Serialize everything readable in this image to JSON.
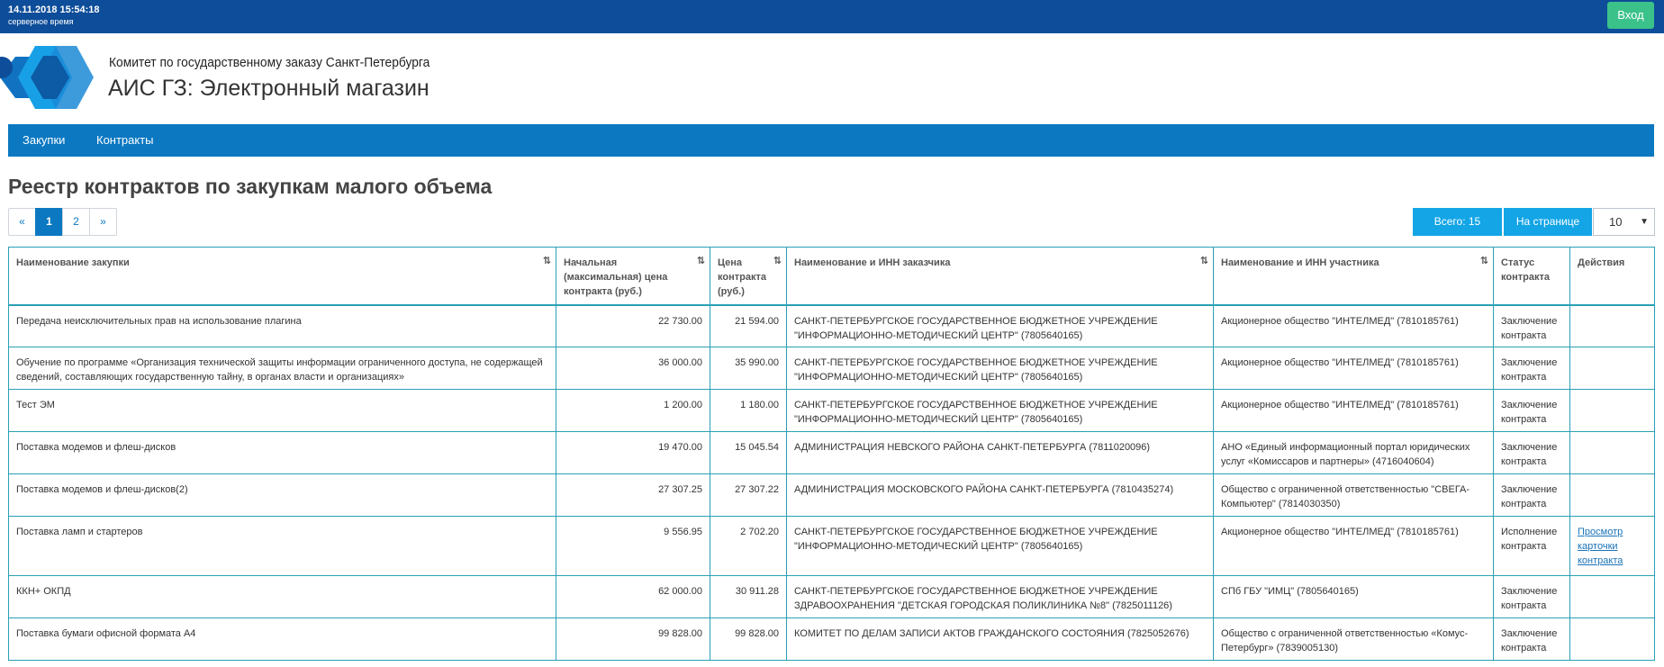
{
  "topbar": {
    "datetime": "14.11.2018 15:54:18",
    "server_time_label": "серверное время",
    "login_label": "Вход"
  },
  "header": {
    "org_name": "Комитет по государственному заказу Санкт-Петербурга",
    "app_title": "АИС ГЗ: Электронный магазин"
  },
  "nav": {
    "items": [
      {
        "label": "Закупки"
      },
      {
        "label": "Контракты"
      }
    ]
  },
  "page_title": "Реестр контрактов по закупкам малого объема",
  "pager": {
    "prev": "«",
    "pages": [
      "1",
      "2"
    ],
    "current": "1",
    "next": "»"
  },
  "totals": {
    "total_label": "Всего: 15",
    "per_page_label": "На странице",
    "per_page_value": "10"
  },
  "table": {
    "columns": [
      "Наименование закупки",
      "Начальная (максимальная) цена контракта (руб.)",
      "Цена контракта (руб.)",
      "Наименование и ИНН заказчика",
      "Наименование и ИНН участника",
      "Статус контракта",
      "Действия"
    ],
    "sort_icon": "⇅",
    "rows": [
      {
        "name": "Передача неисключительных прав на использование плагина",
        "nmck": "22 730.00",
        "price": "21 594.00",
        "customer": "САНКТ-ПЕТЕРБУРГСКОЕ ГОСУДАРСТВЕННОЕ БЮДЖЕТНОЕ УЧРЕЖДЕНИЕ \"ИНФОРМАЦИОННО-МЕТОДИЧЕСКИЙ ЦЕНТР\" (7805640165)",
        "participant": "Акционерное общество \"ИНТЕЛМЕД\" (7810185761)",
        "status": "Заключение контракта",
        "action": ""
      },
      {
        "name": "Обучение по программе «Организация технической защиты информации ограниченного доступа, не содержащей сведений, составляющих государственную тайну, в органах власти и организациях»",
        "nmck": "36 000.00",
        "price": "35 990.00",
        "customer": "САНКТ-ПЕТЕРБУРГСКОЕ ГОСУДАРСТВЕННОЕ БЮДЖЕТНОЕ УЧРЕЖДЕНИЕ \"ИНФОРМАЦИОННО-МЕТОДИЧЕСКИЙ ЦЕНТР\" (7805640165)",
        "participant": "Акционерное общество \"ИНТЕЛМЕД\" (7810185761)",
        "status": "Заключение контракта",
        "action": ""
      },
      {
        "name": "Тест ЭМ",
        "nmck": "1 200.00",
        "price": "1 180.00",
        "customer": "САНКТ-ПЕТЕРБУРГСКОЕ ГОСУДАРСТВЕННОЕ БЮДЖЕТНОЕ УЧРЕЖДЕНИЕ \"ИНФОРМАЦИОННО-МЕТОДИЧЕСКИЙ ЦЕНТР\" (7805640165)",
        "participant": "Акционерное общество \"ИНТЕЛМЕД\" (7810185761)",
        "status": "Заключение контракта",
        "action": ""
      },
      {
        "name": "Поставка модемов и флеш-дисков",
        "nmck": "19 470.00",
        "price": "15 045.54",
        "customer": "АДМИНИСТРАЦИЯ НЕВСКОГО РАЙОНА САНКТ-ПЕТЕРБУРГА (7811020096)",
        "participant": "АНО «Единый информационный портал юридических услуг «Комиссаров и партнеры» (4716040604)",
        "status": "Заключение контракта",
        "action": ""
      },
      {
        "name": "Поставка модемов и флеш-дисков(2)",
        "nmck": "27 307.25",
        "price": "27 307.22",
        "customer": "АДМИНИСТРАЦИЯ МОСКОВСКОГО РАЙОНА САНКТ-ПЕТЕРБУРГА (7810435274)",
        "participant": "Общество с ограниченной ответственностью \"СВЕГА-Компьютер\" (7814030350)",
        "status": "Заключение контракта",
        "action": ""
      },
      {
        "name": "Поставка ламп и стартеров",
        "nmck": "9 556.95",
        "price": "2 702.20",
        "customer": "САНКТ-ПЕТЕРБУРГСКОЕ ГОСУДАРСТВЕННОЕ БЮДЖЕТНОЕ УЧРЕЖДЕНИЕ \"ИНФОРМАЦИОННО-МЕТОДИЧЕСКИЙ ЦЕНТР\" (7805640165)",
        "participant": "Акционерное общество \"ИНТЕЛМЕД\" (7810185761)",
        "status": "Исполнение контракта",
        "action": "Просмотр карточки контракта"
      },
      {
        "name": "ККН+ ОКПД",
        "nmck": "62 000.00",
        "price": "30 911.28",
        "customer": "САНКТ-ПЕТЕРБУРГСКОЕ ГОСУДАРСТВЕННОЕ БЮДЖЕТНОЕ УЧРЕЖДЕНИЕ ЗДРАВООХРАНЕНИЯ \"ДЕТСКАЯ ГОРОДСКАЯ ПОЛИКЛИНИКА №8\" (7825011126)",
        "participant": "СПб ГБУ \"ИМЦ\" (7805640165)",
        "status": "Заключение контракта",
        "action": ""
      },
      {
        "name": "Поставка бумаги офисной формата А4",
        "nmck": "99 828.00",
        "price": "99 828.00",
        "customer": "КОМИТЕТ ПО ДЕЛАМ ЗАПИСИ АКТОВ ГРАЖДАНСКОГО СОСТОЯНИЯ (7825052676)",
        "participant": "Общество с ограниченной ответственностью «Комус-Петербург» (7839005130)",
        "status": "Заключение контракта",
        "action": ""
      }
    ]
  },
  "colors": {
    "topbar": "#0d4d99",
    "nav": "#0b78c1",
    "login_button": "#3bc28a",
    "badge": "#13a5e6",
    "table_border": "#2aa0b5"
  }
}
